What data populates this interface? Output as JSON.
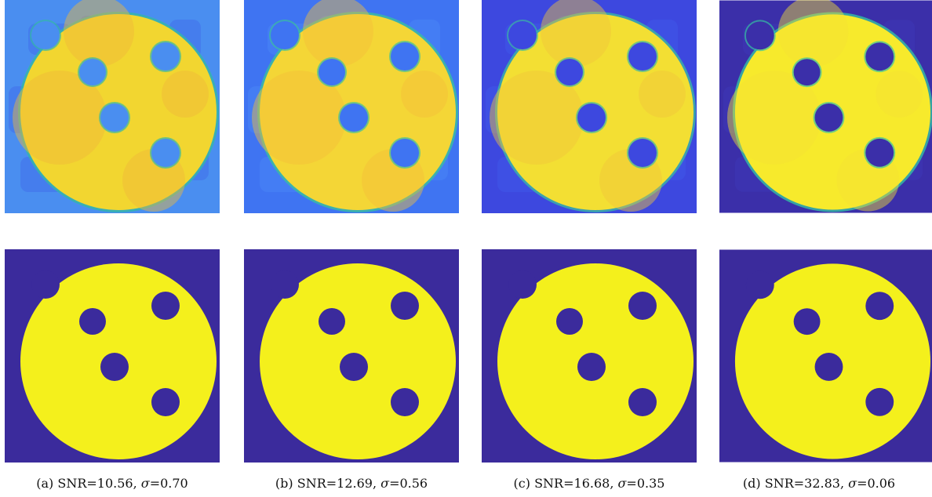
{
  "figure": {
    "columns": [
      {
        "label": "(a)",
        "snr": "10.56",
        "sigma": "0.70",
        "bg_color": "#4a8ef0",
        "bg_patch_color": "#3f6bea",
        "disk_color": "#f2d630",
        "disk_patch_color": "#f0b93a",
        "edge_color": "#33b8a6"
      },
      {
        "label": "(b)",
        "snr": "12.69",
        "sigma": "0.56",
        "bg_color": "#3f74f2",
        "bg_patch_color": "#4a86f5",
        "disk_color": "#f4d636",
        "disk_patch_color": "#f3bf3a",
        "edge_color": "#3abf9e"
      },
      {
        "label": "(c)",
        "snr": "16.68",
        "sigma": "0.35",
        "bg_color": "#3d48df",
        "bg_patch_color": "#3f57ea",
        "disk_color": "#f3df33",
        "disk_patch_color": "#f1c63a",
        "edge_color": "#3bb7a3"
      },
      {
        "label": "(d)",
        "snr": "32.83",
        "sigma": "0.06",
        "bg_color": "#3b2fa9",
        "bg_patch_color": "#3d37b8",
        "disk_color": "#f7ea2c",
        "disk_patch_color": "#f4e234",
        "edge_color": "#34c1a2"
      }
    ],
    "segmentation": {
      "bg_color": "#3b2b9c",
      "disk_color": "#f4f01c"
    },
    "caption_prefix": "SNR=",
    "caption_sigma_prefix": "σ=",
    "caption_separator": ", "
  }
}
